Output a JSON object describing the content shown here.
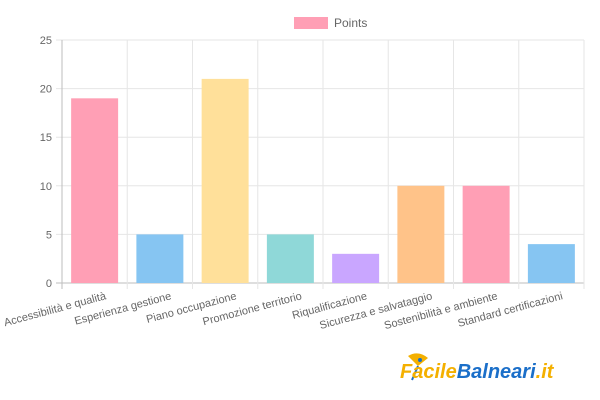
{
  "chart_data": {
    "type": "bar",
    "categories": [
      "Accessibilità e qualità",
      "Esperienza gestione",
      "Piano occupazione",
      "Promozione territorio",
      "Riqualificazione",
      "Sicurezza e salvataggio",
      "Sostenibilità e ambiente",
      "Standard certificazioni"
    ],
    "series": [
      {
        "name": "Points",
        "values": [
          19,
          5,
          21,
          5,
          3,
          10,
          10,
          4
        ]
      }
    ],
    "ylim": [
      0,
      25
    ],
    "yticks": [
      0,
      5,
      10,
      15,
      20,
      25
    ],
    "grid": true,
    "legend": "top-center",
    "colors": [
      "#ff9fb5",
      "#86c5f2",
      "#ffe09a",
      "#8fd8d8",
      "#c9a6ff",
      "#ffc389",
      "#ff9fb5",
      "#86c5f2"
    ],
    "border_colors": [
      "#ff6384",
      "#36a2eb",
      "#ffcd56",
      "#4bc0c0",
      "#9966ff",
      "#ff9f40",
      "#ff6384",
      "#36a2eb"
    ],
    "legend_color": "#ff9fb5"
  },
  "logo": {
    "text_part1": "Facile",
    "text_part2": "Balneari",
    "text_part3": ".it",
    "colors": [
      "#f4b000",
      "#1b6fc9",
      "#f4b000"
    ]
  }
}
